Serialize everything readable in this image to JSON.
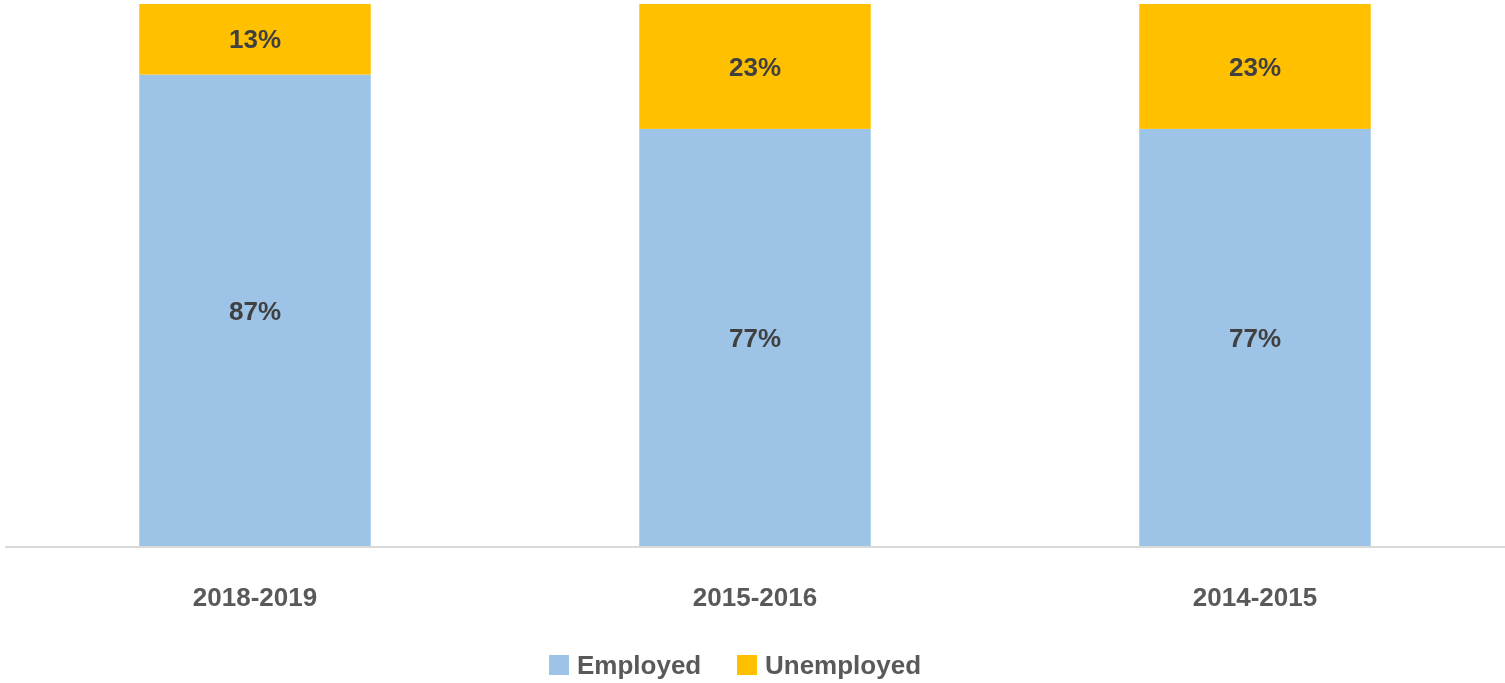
{
  "chart_data": {
    "type": "bar",
    "stacked": true,
    "categories": [
      "2018-2019",
      "2015-2016",
      "2014-2015"
    ],
    "series": [
      {
        "name": "Employed",
        "color": "#9dc3e6",
        "values": [
          87,
          77,
          77
        ],
        "value_labels": [
          "87%",
          "77%",
          "77%"
        ]
      },
      {
        "name": "Unemployed",
        "color": "#ffc000",
        "values": [
          13,
          23,
          23
        ],
        "value_labels": [
          "13%",
          "23%",
          "23%"
        ]
      }
    ],
    "legend": "bottom",
    "grid": false
  }
}
